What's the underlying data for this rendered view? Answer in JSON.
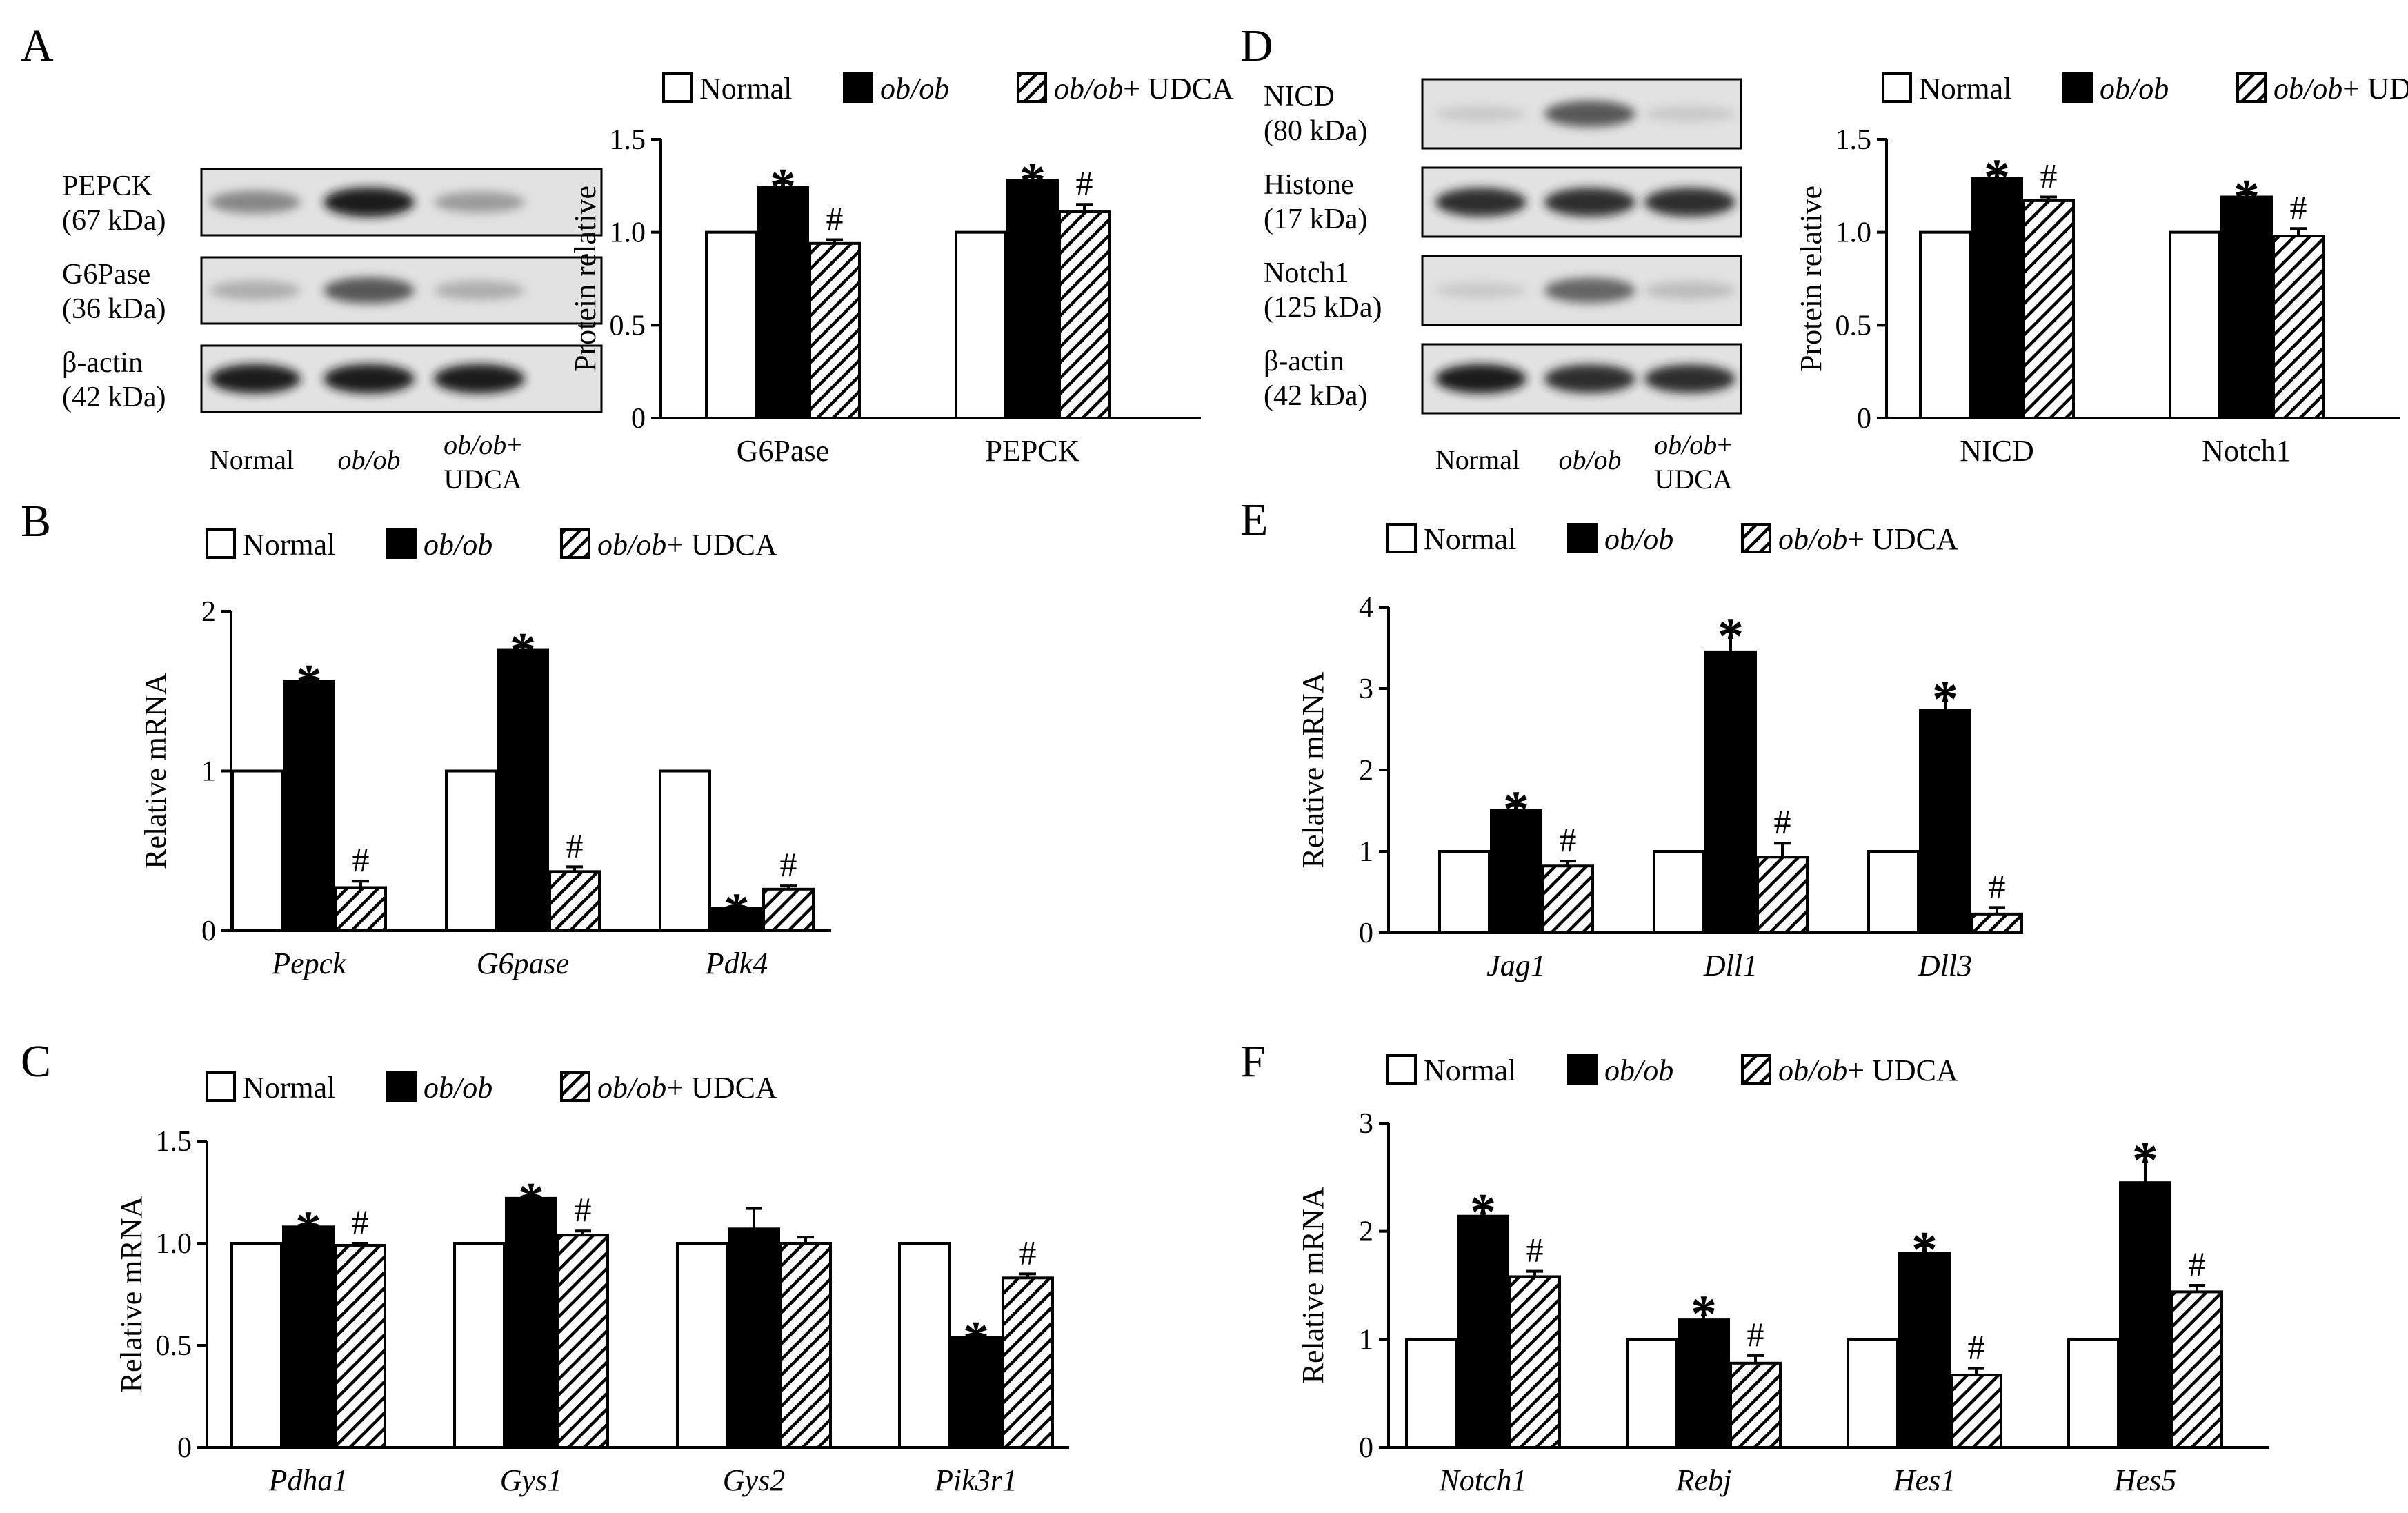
{
  "figure": {
    "legend": [
      "Normal",
      "ob/ob",
      "ob/ob+ UDCA"
    ],
    "legend_italic_prefix": [
      "",
      "ob/ob",
      "ob/ob"
    ],
    "colors": {
      "normal": "#ffffff",
      "obob": "#000000",
      "udca": "hatch",
      "stroke": "#000000"
    }
  },
  "blots": [
    {
      "panel": "A",
      "lanes": [
        "Normal",
        "ob/ob",
        "ob/ob+",
        "UDCA"
      ],
      "rows": [
        {
          "name": "PEPCK",
          "kda": "(67 kDa)",
          "intensity": [
            0.55,
            0.95,
            0.45
          ]
        },
        {
          "name": "G6Pase",
          "kda": "(36 kDa)",
          "intensity": [
            0.35,
            0.75,
            0.35
          ]
        },
        {
          "name": "β-actin",
          "kda": "(42 kDa)",
          "intensity": [
            0.95,
            0.95,
            0.95
          ]
        }
      ]
    },
    {
      "panel": "D",
      "lanes": [
        "Normal",
        "ob/ob",
        "ob/ob+",
        "UDCA"
      ],
      "rows": [
        {
          "name": "NICD",
          "kda": "(80 kDa)",
          "intensity": [
            0.15,
            0.75,
            0.15
          ]
        },
        {
          "name": "Histone",
          "kda": "(17 kDa)",
          "intensity": [
            0.9,
            0.9,
            0.9
          ]
        },
        {
          "name": "Notch1",
          "kda": "(125 kDa)",
          "intensity": [
            0.15,
            0.7,
            0.25
          ]
        },
        {
          "name": "β-actin",
          "kda": "(42 kDa)",
          "intensity": [
            0.95,
            0.9,
            0.9
          ]
        }
      ]
    }
  ],
  "chart_data": [
    {
      "panel": "A",
      "type": "bar",
      "title": "",
      "xlabel": "",
      "ylabel": "Protein relative",
      "ylim": [
        0,
        1.5
      ],
      "yticks": [
        "0",
        "0.5",
        "1.0",
        "1.5"
      ],
      "italic_categories": false,
      "categories": [
        "G6Pase",
        "PEPCK"
      ],
      "series": [
        {
          "name": "Normal",
          "values": [
            1.0,
            1.0
          ],
          "errors": [
            0,
            0
          ],
          "marks": [
            "",
            ""
          ]
        },
        {
          "name": "ob/ob",
          "values": [
            1.24,
            1.28
          ],
          "errors": [
            0.03,
            0.02
          ],
          "marks": [
            "*",
            "*"
          ]
        },
        {
          "name": "ob/ob+ UDCA",
          "values": [
            0.94,
            1.11
          ],
          "errors": [
            0.02,
            0.04
          ],
          "marks": [
            "#",
            "#"
          ]
        }
      ]
    },
    {
      "panel": "B",
      "type": "bar",
      "title": "",
      "xlabel": "",
      "ylabel": "Relative mRNA",
      "ylim": [
        0,
        2
      ],
      "yticks": [
        "0",
        "1",
        "2"
      ],
      "italic_categories": true,
      "categories": [
        "Pepck",
        "G6pase",
        "Pdk4"
      ],
      "series": [
        {
          "name": "Normal",
          "values": [
            1.0,
            1.0,
            1.0
          ],
          "errors": [
            0,
            0,
            0
          ],
          "marks": [
            "",
            "",
            ""
          ]
        },
        {
          "name": "ob/ob",
          "values": [
            1.56,
            1.76,
            0.14
          ],
          "errors": [
            0.02,
            0.02,
            0.01
          ],
          "marks": [
            "*",
            "*",
            "*"
          ]
        },
        {
          "name": "ob/ob+ UDCA",
          "values": [
            0.27,
            0.37,
            0.26
          ],
          "errors": [
            0.04,
            0.03,
            0.02
          ],
          "marks": [
            "#",
            "#",
            "#"
          ]
        }
      ]
    },
    {
      "panel": "C",
      "type": "bar",
      "title": "",
      "xlabel": "",
      "ylabel": "Relative mRNA",
      "ylim": [
        0,
        1.5
      ],
      "yticks": [
        "0",
        "0.5",
        "1.0",
        "1.5"
      ],
      "italic_categories": true,
      "categories": [
        "Pdha1",
        "Gys1",
        "Gys2",
        "Pik3r1"
      ],
      "series": [
        {
          "name": "Normal",
          "values": [
            1.0,
            1.0,
            1.0,
            1.0
          ],
          "errors": [
            0,
            0,
            0,
            0
          ],
          "marks": [
            "",
            "",
            "",
            ""
          ]
        },
        {
          "name": "ob/ob",
          "values": [
            1.08,
            1.22,
            1.07,
            0.54
          ],
          "errors": [
            0.01,
            0.01,
            0.1,
            0.01
          ],
          "marks": [
            "*",
            "*",
            "",
            "*"
          ]
        },
        {
          "name": "ob/ob+ UDCA",
          "values": [
            0.99,
            1.04,
            1.0,
            0.83
          ],
          "errors": [
            0.01,
            0.02,
            0.03,
            0.02
          ],
          "marks": [
            "#",
            "#",
            "",
            "#"
          ]
        }
      ]
    },
    {
      "panel": "D",
      "type": "bar",
      "title": "",
      "xlabel": "",
      "ylabel": "Protein relative",
      "ylim": [
        0,
        1.5
      ],
      "yticks": [
        "0",
        "0.5",
        "1.0",
        "1.5"
      ],
      "italic_categories": false,
      "categories": [
        "NICD",
        "Notch1"
      ],
      "series": [
        {
          "name": "Normal",
          "values": [
            1.0,
            1.0
          ],
          "errors": [
            0,
            0
          ],
          "marks": [
            "",
            ""
          ]
        },
        {
          "name": "ob/ob",
          "values": [
            1.29,
            1.19
          ],
          "errors": [
            0.03,
            0.02
          ],
          "marks": [
            "*",
            "*"
          ]
        },
        {
          "name": "ob/ob+ UDCA",
          "values": [
            1.17,
            0.98
          ],
          "errors": [
            0.02,
            0.04
          ],
          "marks": [
            "#",
            "#"
          ]
        }
      ]
    },
    {
      "panel": "E",
      "type": "bar",
      "title": "",
      "xlabel": "",
      "ylabel": "Relative mRNA",
      "ylim": [
        0,
        4
      ],
      "yticks": [
        "0",
        "1",
        "2",
        "3",
        "4"
      ],
      "italic_categories": true,
      "categories": [
        "Jag1",
        "Dll1",
        "Dll3"
      ],
      "series": [
        {
          "name": "Normal",
          "values": [
            1.0,
            1.0,
            1.0
          ],
          "errors": [
            0,
            0,
            0
          ],
          "marks": [
            "",
            "",
            ""
          ]
        },
        {
          "name": "ob/ob",
          "values": [
            1.5,
            3.45,
            2.73
          ],
          "errors": [
            0.07,
            0.25,
            0.2
          ],
          "marks": [
            "*",
            "*",
            "*"
          ]
        },
        {
          "name": "ob/ob+ UDCA",
          "values": [
            0.82,
            0.93,
            0.23
          ],
          "errors": [
            0.06,
            0.17,
            0.08
          ],
          "marks": [
            "#",
            "#",
            "#"
          ]
        }
      ]
    },
    {
      "panel": "F",
      "type": "bar",
      "title": "",
      "xlabel": "",
      "ylabel": "Relative mRNA",
      "ylim": [
        0,
        3
      ],
      "yticks": [
        "0",
        "1",
        "2",
        "3"
      ],
      "italic_categories": true,
      "categories": [
        "Notch1",
        "Rebj",
        "Hes1",
        "Hes5"
      ],
      "series": [
        {
          "name": "Normal",
          "values": [
            1.0,
            1.0,
            1.0,
            1.0
          ],
          "errors": [
            0,
            0,
            0,
            0
          ],
          "marks": [
            "",
            "",
            "",
            ""
          ]
        },
        {
          "name": "ob/ob",
          "values": [
            2.14,
            1.18,
            1.8,
            2.45
          ],
          "errors": [
            0.08,
            0.1,
            0.07,
            0.25
          ],
          "marks": [
            "*",
            "*",
            "*",
            "*"
          ]
        },
        {
          "name": "ob/ob+ UDCA",
          "values": [
            1.58,
            0.78,
            0.67,
            1.44
          ],
          "errors": [
            0.05,
            0.07,
            0.06,
            0.06
          ],
          "marks": [
            "#",
            "#",
            "#",
            "#"
          ]
        }
      ]
    }
  ]
}
